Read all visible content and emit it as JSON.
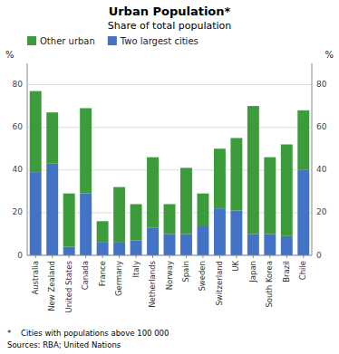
{
  "chart_data": {
    "type": "bar",
    "stacked": true,
    "title": "Urban Population*",
    "subtitle": "Share of total population",
    "footnote": "*    Cities with populations above 100 000",
    "source": "Sources: RBA; United Nations",
    "ylabel": "%",
    "y2label": "%",
    "categories": [
      "Australia",
      "New Zealand",
      "United States",
      "Canada",
      "France",
      "Germany",
      "Italy",
      "Netherlands",
      "Norway",
      "Spain",
      "Sweden",
      "Switzerland",
      "UK",
      "Japan",
      "South Korea",
      "Brazil",
      "Chile"
    ],
    "series": [
      {
        "name": "Two largest cities",
        "color": "#4472c4",
        "values": [
          39,
          43,
          4,
          29,
          6,
          6,
          7,
          13,
          10,
          10,
          14,
          22,
          21,
          10,
          10,
          9,
          40
        ]
      },
      {
        "name": "Other urban",
        "color": "#3c9c3c",
        "values": [
          38,
          24,
          25,
          40,
          10,
          26,
          17,
          33,
          14,
          31,
          15,
          28,
          34,
          60,
          36,
          43,
          28
        ]
      }
    ],
    "ylim": [
      0,
      90
    ],
    "yticks": [
      0,
      20,
      40,
      60,
      80
    ],
    "y2lim": [
      0,
      90
    ],
    "y2ticks": [
      0,
      20,
      40,
      60,
      80
    ],
    "grid": true,
    "legend": "upper left"
  }
}
